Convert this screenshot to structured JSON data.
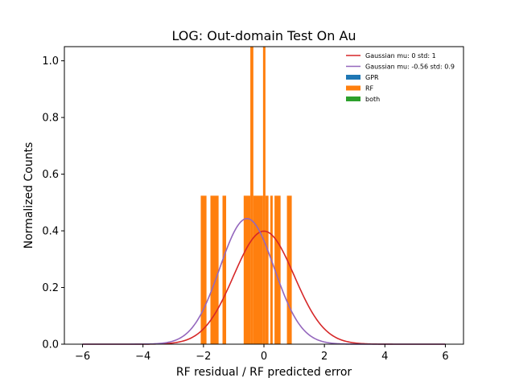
{
  "chart_data": {
    "type": "bar",
    "title": "LOG: Out-domain Test On Au",
    "xlabel": "RF residual / RF predicted error",
    "ylabel": "Normalized Counts",
    "xlim": [
      -6.6,
      6.6
    ],
    "ylim": [
      0,
      1.05
    ],
    "xticks": [
      -6,
      -4,
      -2,
      0,
      2,
      4,
      6
    ],
    "xtick_labels": [
      "−6",
      "−4",
      "−2",
      "0",
      "2",
      "4",
      "6"
    ],
    "yticks": [
      0.0,
      0.2,
      0.4,
      0.6,
      0.8,
      1.0
    ],
    "ytick_labels": [
      "0.0",
      "0.2",
      "0.4",
      "0.6",
      "0.8",
      "1.0"
    ],
    "grid": false,
    "legend_position": "top-right",
    "histogram": {
      "name": "RF",
      "color": "#ff7f0e",
      "bars": [
        {
          "x0": -2.09,
          "x1": -1.9,
          "y": 0.524
        },
        {
          "x0": -1.77,
          "x1": -1.5,
          "y": 0.524
        },
        {
          "x0": -1.37,
          "x1": -1.25,
          "y": 0.524
        },
        {
          "x0": -0.67,
          "x1": -0.45,
          "y": 0.524
        },
        {
          "x0": -0.45,
          "x1": -0.35,
          "y": 1.05
        },
        {
          "x0": -0.35,
          "x1": -0.03,
          "y": 0.524
        },
        {
          "x0": -0.03,
          "x1": 0.05,
          "y": 1.05
        },
        {
          "x0": 0.05,
          "x1": 0.15,
          "y": 0.524
        },
        {
          "x0": 0.21,
          "x1": 0.29,
          "y": 0.524
        },
        {
          "x0": 0.35,
          "x1": 0.55,
          "y": 0.524
        },
        {
          "x0": 0.76,
          "x1": 0.92,
          "y": 0.524
        }
      ]
    },
    "curves": [
      {
        "name": "Gaussian mu: 0 std: 1",
        "mu": 0,
        "std": 1,
        "color": "#d62728"
      },
      {
        "name": "Gaussian mu: -0.56 std: 0.9",
        "mu": -0.56,
        "std": 0.9,
        "color": "#9467bd"
      }
    ],
    "curve_range": [
      -6,
      6
    ],
    "legend": [
      {
        "label": "Gaussian mu: 0 std: 1",
        "kind": "line",
        "color": "#d62728"
      },
      {
        "label": "Gaussian mu: -0.56 std: 0.9",
        "kind": "line",
        "color": "#9467bd"
      },
      {
        "label": "GPR",
        "kind": "patch",
        "color": "#1f77b4"
      },
      {
        "label": "RF",
        "kind": "patch",
        "color": "#ff7f0e"
      },
      {
        "label": "both",
        "kind": "patch",
        "color": "#2ca02c"
      }
    ]
  }
}
